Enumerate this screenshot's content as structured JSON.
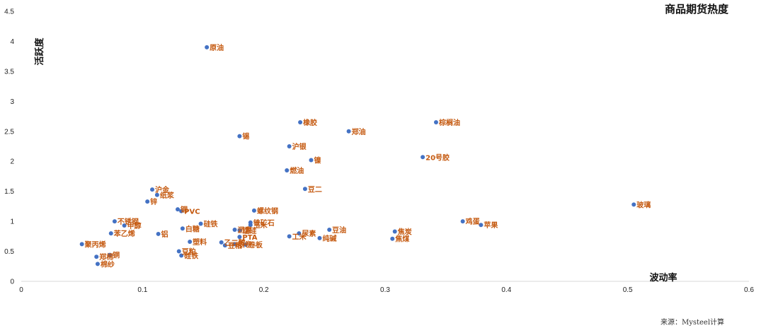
{
  "chart_data": {
    "type": "scatter",
    "title": "商品期货热度",
    "xlabel": "波动率",
    "ylabel": "活跃度",
    "source": "来源：Mysteel计算",
    "xlim": [
      0,
      0.6
    ],
    "ylim": [
      0,
      4.5
    ],
    "xticks": [
      "0",
      "0.1",
      "0.2",
      "0.3",
      "0.4",
      "0.5",
      "0.6"
    ],
    "yticks": [
      "0",
      "0.5",
      "1",
      "1.5",
      "2",
      "2.5",
      "3",
      "3.5",
      "4",
      "4.5"
    ],
    "point_color": "#4472c4",
    "label_color": "#c55a11",
    "points": [
      {
        "label": "原油",
        "x": 0.153,
        "y": 3.9
      },
      {
        "label": "橡胶",
        "x": 0.23,
        "y": 2.65
      },
      {
        "label": "棕榈油",
        "x": 0.342,
        "y": 2.65
      },
      {
        "label": "郑油",
        "x": 0.27,
        "y": 2.5
      },
      {
        "label": "锡",
        "x": 0.18,
        "y": 2.42
      },
      {
        "label": "沪银",
        "x": 0.221,
        "y": 2.25
      },
      {
        "label": "20号胶",
        "x": 0.331,
        "y": 2.07
      },
      {
        "label": "镍",
        "x": 0.239,
        "y": 2.02
      },
      {
        "label": "燃油",
        "x": 0.219,
        "y": 1.85
      },
      {
        "label": "豆二",
        "x": 0.234,
        "y": 1.54
      },
      {
        "label": "沪金",
        "x": 0.108,
        "y": 1.53
      },
      {
        "label": "纸浆",
        "x": 0.112,
        "y": 1.44
      },
      {
        "label": "锌",
        "x": 0.104,
        "y": 1.33
      },
      {
        "label": "玻璃",
        "x": 0.505,
        "y": 1.28
      },
      {
        "label": "铜",
        "x": 0.129,
        "y": 1.2
      },
      {
        "label": "PVC",
        "x": 0.132,
        "y": 1.17
      },
      {
        "label": "螺纹钢",
        "x": 0.192,
        "y": 1.18
      },
      {
        "label": "鸡蛋",
        "x": 0.364,
        "y": 1.0
      },
      {
        "label": "苹果",
        "x": 0.379,
        "y": 0.94
      },
      {
        "label": "不锈钢",
        "x": 0.077,
        "y": 1.0
      },
      {
        "label": "硅铁",
        "x": 0.148,
        "y": 0.96
      },
      {
        "label": "甲醇",
        "x": 0.085,
        "y": 0.93
      },
      {
        "label": "铁矿石",
        "x": 0.189,
        "y": 0.98
      },
      {
        "label": "玉米",
        "x": 0.189,
        "y": 0.94
      },
      {
        "label": "白糖",
        "x": 0.133,
        "y": 0.88
      },
      {
        "label": "焦炭",
        "x": 0.308,
        "y": 0.83
      },
      {
        "label": "豆油",
        "x": 0.254,
        "y": 0.86
      },
      {
        "label": "沥青",
        "x": 0.176,
        "y": 0.86
      },
      {
        "label": "锰硅",
        "x": 0.18,
        "y": 0.85
      },
      {
        "label": "尿素",
        "x": 0.229,
        "y": 0.8
      },
      {
        "label": "铝",
        "x": 0.113,
        "y": 0.79
      },
      {
        "label": "苯乙烯",
        "x": 0.074,
        "y": 0.8
      },
      {
        "label": "工米",
        "x": 0.221,
        "y": 0.75
      },
      {
        "label": "PTA",
        "x": 0.18,
        "y": 0.74
      },
      {
        "label": "纯碱",
        "x": 0.246,
        "y": 0.72
      },
      {
        "label": "焦煤",
        "x": 0.306,
        "y": 0.71
      },
      {
        "label": "塑料",
        "x": 0.139,
        "y": 0.66
      },
      {
        "label": "热卷",
        "x": 0.176,
        "y": 0.62
      },
      {
        "label": "乙二醇",
        "x": 0.165,
        "y": 0.65
      },
      {
        "label": "卷板",
        "x": 0.185,
        "y": 0.61
      },
      {
        "label": "豆粕",
        "x": 0.168,
        "y": 0.6
      },
      {
        "label": "聚丙烯",
        "x": 0.05,
        "y": 0.62
      },
      {
        "label": "豆粕",
        "x": 0.13,
        "y": 0.5
      },
      {
        "label": "硅铁",
        "x": 0.132,
        "y": 0.43
      },
      {
        "label": "郑棉",
        "x": 0.062,
        "y": 0.41
      },
      {
        "label": "铜",
        "x": 0.073,
        "y": 0.44
      },
      {
        "label": "棉纱",
        "x": 0.063,
        "y": 0.29
      }
    ]
  }
}
